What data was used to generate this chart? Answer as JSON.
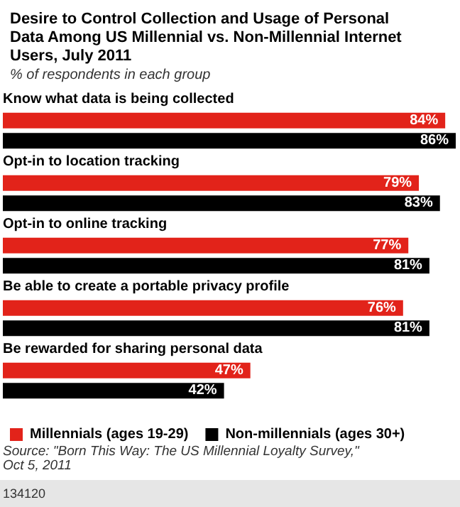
{
  "chart_data": {
    "type": "bar",
    "orientation": "horizontal",
    "title": "Desire to Control Collection and Usage of Personal Data Among US Millennial vs. Non-Millennial Internet Users, July 2011",
    "subtitle": "% of respondents in each group",
    "categories": [
      "Know what data is being collected",
      "Opt-in to location tracking",
      "Opt-in to online tracking",
      "Be able to create a portable privacy profile",
      "Be rewarded for sharing personal data"
    ],
    "series": [
      {
        "name": "Millennials (ages 19-29)",
        "color": "#e2231a",
        "values": [
          84,
          79,
          77,
          76,
          47
        ],
        "value_labels": [
          "84%",
          "79%",
          "77%",
          "76%",
          "47%"
        ]
      },
      {
        "name": "Non-millennials (ages 30+)",
        "color": "#000000",
        "values": [
          86,
          83,
          81,
          81,
          42
        ],
        "value_labels": [
          "86%",
          "83%",
          "81%",
          "81%",
          "42%"
        ]
      }
    ],
    "legend": "bottom",
    "annotations": [
      "Source: \"Born This Way: The US Millennial Loyalty Survey,\" Oct 5, 2011",
      "134120"
    ]
  }
}
